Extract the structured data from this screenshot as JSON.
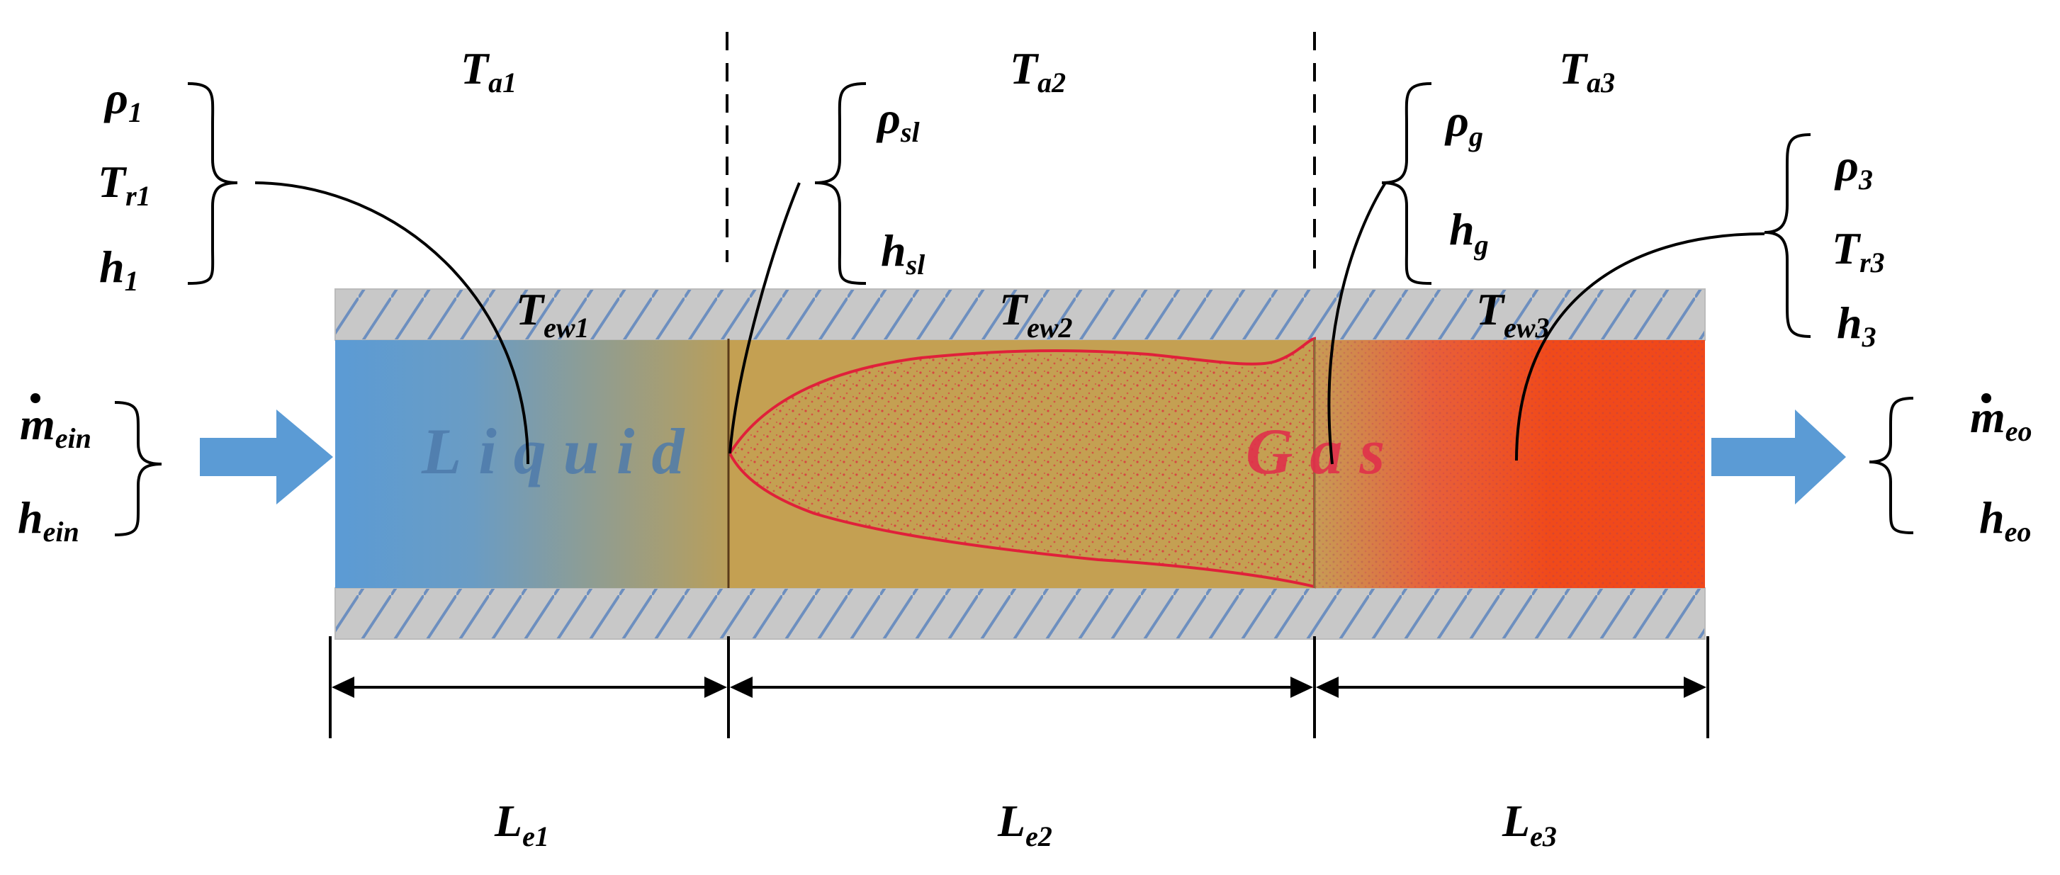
{
  "ambient": {
    "a1": {
      "main": "T",
      "sub": "a1"
    },
    "a2": {
      "main": "T",
      "sub": "a2"
    },
    "a3": {
      "main": "T",
      "sub": "a3"
    }
  },
  "wall": {
    "ew1": {
      "main": "T",
      "sub": "ew1"
    },
    "ew2": {
      "main": "T",
      "sub": "ew2"
    },
    "ew3": {
      "main": "T",
      "sub": "ew3"
    }
  },
  "zone1": {
    "rho": {
      "main": "ρ",
      "sub": "1"
    },
    "tr": {
      "main": "T",
      "sub": "r1"
    },
    "h": {
      "main": "h",
      "sub": "1"
    }
  },
  "zone2": {
    "rho": {
      "main": "ρ",
      "sub": "sl"
    },
    "h": {
      "main": "h",
      "sub": "sl"
    }
  },
  "gas": {
    "rho": {
      "main": "ρ",
      "sub": "g"
    },
    "h": {
      "main": "h",
      "sub": "g"
    }
  },
  "zone3": {
    "rho": {
      "main": "ρ",
      "sub": "3"
    },
    "tr": {
      "main": "T",
      "sub": "r3"
    },
    "h": {
      "main": "h",
      "sub": "3"
    }
  },
  "inlet": {
    "m": {
      "main": "m",
      "sub": "ein"
    },
    "h": {
      "main": "h",
      "sub": "ein"
    }
  },
  "outlet": {
    "m": {
      "main": "m",
      "sub": "eo"
    },
    "h": {
      "main": "h",
      "sub": "eo"
    }
  },
  "lengths": {
    "le1": {
      "main": "L",
      "sub": "e1"
    },
    "le2": {
      "main": "L",
      "sub": "e2"
    },
    "le3": {
      "main": "L",
      "sub": "e3"
    }
  },
  "regions": {
    "liquid": "Liquid",
    "gas": "Gas"
  },
  "colors": {
    "liquid": "#5b9bd5",
    "two_phase": "#c4a052",
    "gas": "#f04a1a",
    "arrow": "#5b9bd5",
    "wall": "#c8c8c8",
    "hatch": "#6d8fbf",
    "boundary_curve": "#e0203a"
  }
}
